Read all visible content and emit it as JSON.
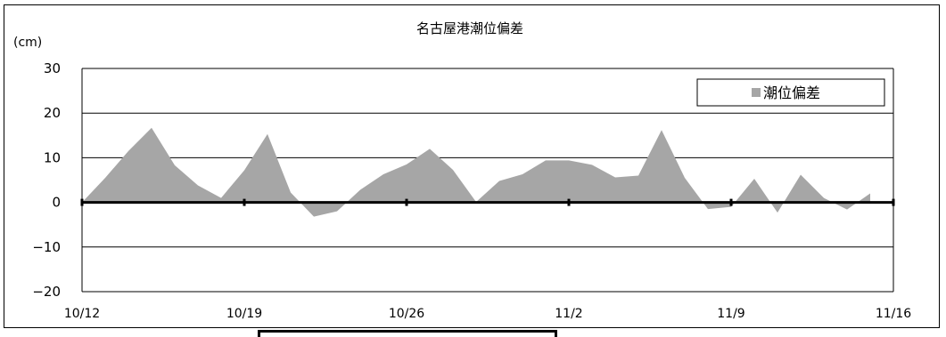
{
  "chart_data": {
    "type": "area",
    "title": "名古屋港潮位偏差",
    "ylabel": "(cm)",
    "xlabel": "",
    "x_start": "10/12",
    "x_end": "11/16",
    "ylim": [
      -20,
      30
    ],
    "yticks": [
      -20,
      -10,
      0,
      10,
      20,
      30
    ],
    "xtick_labels": [
      "10/12",
      "10/19",
      "10/26",
      "11/2",
      "11/9",
      "11/16"
    ],
    "grid": true,
    "legend_position": "top-right",
    "series": [
      {
        "name": "潮位偏差",
        "color": "#a6a6a6",
        "points": [
          {
            "x": "10/12",
            "y": 0
          },
          {
            "x": "10/13",
            "y": 5.5
          },
          {
            "x": "10/14",
            "y": 11.5
          },
          {
            "x": "10/15",
            "y": 16.7
          },
          {
            "x": "10/16",
            "y": 8.3
          },
          {
            "x": "10/17",
            "y": 3.8
          },
          {
            "x": "10/18",
            "y": 1.0
          },
          {
            "x": "10/19",
            "y": 7.2
          },
          {
            "x": "10/20",
            "y": 15.3
          },
          {
            "x": "10/21",
            "y": 2.2
          },
          {
            "x": "10/22",
            "y": -3.2
          },
          {
            "x": "10/23",
            "y": -2.0
          },
          {
            "x": "10/24",
            "y": 2.8
          },
          {
            "x": "10/25",
            "y": 6.3
          },
          {
            "x": "10/26",
            "y": 8.5
          },
          {
            "x": "10/27",
            "y": 12.0
          },
          {
            "x": "10/28",
            "y": 7.3
          },
          {
            "x": "10/29",
            "y": 0.1
          },
          {
            "x": "10/30",
            "y": 4.8
          },
          {
            "x": "10/31",
            "y": 6.3
          },
          {
            "x": "11/1",
            "y": 9.4
          },
          {
            "x": "11/2",
            "y": 9.4
          },
          {
            "x": "11/3",
            "y": 8.4
          },
          {
            "x": "11/4",
            "y": 5.6
          },
          {
            "x": "11/5",
            "y": 6.0
          },
          {
            "x": "11/6",
            "y": 16.2
          },
          {
            "x": "11/7",
            "y": 5.5
          },
          {
            "x": "11/8",
            "y": -1.5
          },
          {
            "x": "11/9",
            "y": -1.0
          },
          {
            "x": "11/10",
            "y": 5.3
          },
          {
            "x": "11/11",
            "y": -2.3
          },
          {
            "x": "11/12",
            "y": 6.2
          },
          {
            "x": "11/13",
            "y": 1.0
          },
          {
            "x": "11/14",
            "y": -1.6
          },
          {
            "x": "11/15",
            "y": 2.0
          }
        ]
      }
    ]
  }
}
